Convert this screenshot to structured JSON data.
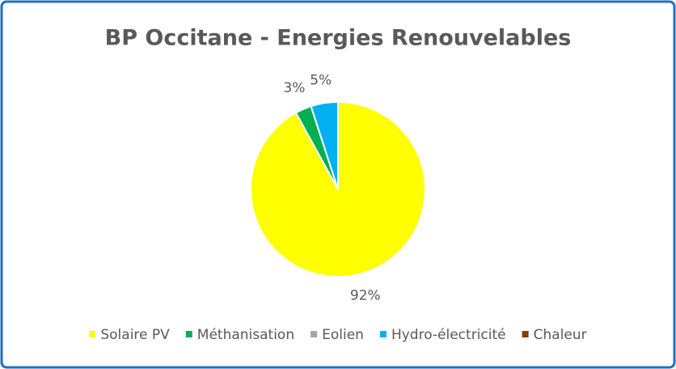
{
  "chart_data": {
    "type": "pie",
    "title": "BP Occitane - Energies Renouvelables",
    "categories": [
      "Solaire PV",
      "Méthanisation",
      "Eolien",
      "Hydro-électricité",
      "Chaleur"
    ],
    "values": [
      92,
      3,
      0,
      5,
      0
    ],
    "value_labels": [
      "92%",
      "3%",
      null,
      "5%",
      null
    ],
    "colors": [
      "#ffff00",
      "#00b050",
      "#a5a5a5",
      "#00b0f0",
      "#843c0c"
    ],
    "legend": "bottom"
  }
}
